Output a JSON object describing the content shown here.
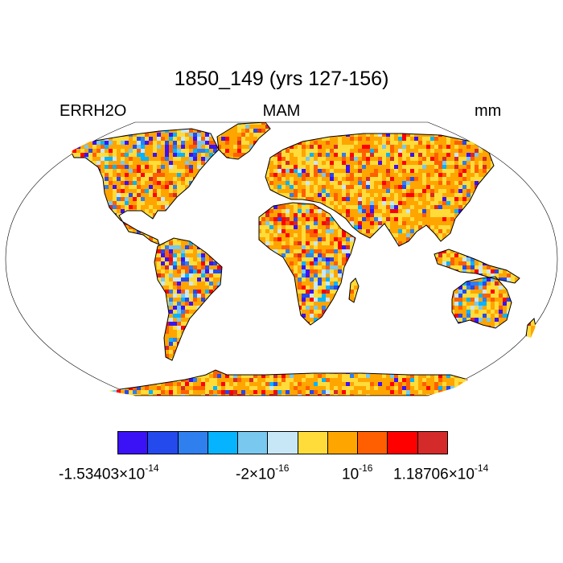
{
  "title": "1850_149 (yrs 127-156)",
  "subtitle_left": "ERRH2O",
  "subtitle_center": "MAM",
  "subtitle_right": "mm",
  "projection": "Robinson",
  "colors": {
    "land_dominant": "#ffa500",
    "ocean": "#ffffff",
    "coastline": "#000000"
  },
  "colorbar": {
    "colors": [
      "#3b12f5",
      "#2449ec",
      "#2f7fef",
      "#05b3ff",
      "#78c8ef",
      "#c7e7f7",
      "#ffdc3a",
      "#ffa500",
      "#ff5f00",
      "#ff0000",
      "#d42a2a"
    ],
    "labels": [
      {
        "mantissa": "-1.53403",
        "times": "×10",
        "exp": "-14"
      },
      {
        "mantissa": "-2",
        "times": "×10",
        "exp": "-16"
      },
      {
        "mantissa": "",
        "times": "10",
        "exp": "-16"
      },
      {
        "mantissa": "1.18706",
        "times": "×10",
        "exp": "-14"
      }
    ]
  }
}
